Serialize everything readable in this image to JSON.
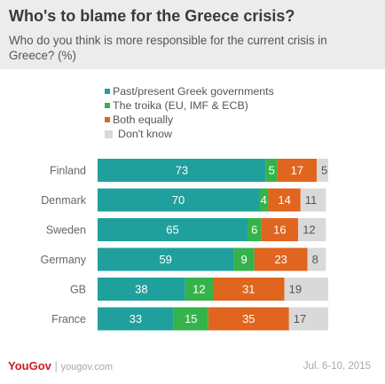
{
  "title": "Who's to blame for the Greece crisis?",
  "subtitle": "Who do you think is more responsible for the current crisis in Greece? (%)",
  "legend": [
    {
      "label": "Past/present Greek governments",
      "color": "#20a09c"
    },
    {
      "label": "The troika (EU, IMF & ECB)",
      "color": "#35b34a"
    },
    {
      "label": "Both equally",
      "color": "#e0651e"
    },
    {
      "label": "Don't know",
      "color": "#d9d9d9"
    }
  ],
  "chart_data": {
    "type": "bar",
    "orientation": "horizontal",
    "stacked": true,
    "categories": [
      "Finland",
      "Denmark",
      "Sweden",
      "Germany",
      "GB",
      "France"
    ],
    "series": [
      {
        "name": "Past/present Greek governments",
        "color": "#20a09c",
        "values": [
          73,
          70,
          65,
          59,
          38,
          33
        ]
      },
      {
        "name": "The troika (EU, IMF & ECB)",
        "color": "#35b34a",
        "values": [
          5,
          4,
          6,
          9,
          12,
          15
        ]
      },
      {
        "name": "Both equally",
        "color": "#e0651e",
        "values": [
          17,
          14,
          16,
          23,
          31,
          35
        ]
      },
      {
        "name": "Don't know",
        "color": "#d9d9d9",
        "values": [
          5,
          11,
          12,
          8,
          19,
          17
        ]
      }
    ],
    "xlim": [
      0,
      100
    ]
  },
  "footer": {
    "brand": "YouGov",
    "separator": " | ",
    "site": "yougov.com",
    "date": "Jul. 6-10, 2015"
  }
}
